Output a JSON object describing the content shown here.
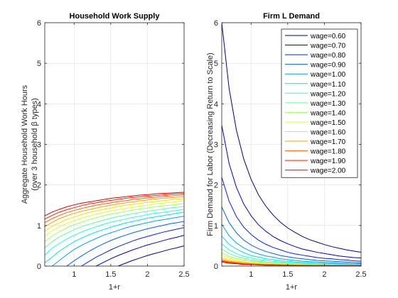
{
  "chart_data": [
    {
      "type": "line",
      "title": "Household Work Supply",
      "xlabel": "1+r",
      "ylabel_lines": [
        "Aggregate Household Work Hours",
        "(over 3 household β types)"
      ],
      "xlim": [
        0.6,
        2.5
      ],
      "ylim": [
        0,
        6
      ],
      "xticks": [
        1,
        1.5,
        2,
        2.5
      ],
      "xtick_labels": [
        "1",
        "1.5",
        "2",
        "2.5"
      ],
      "yticks": [
        0,
        1,
        2,
        3,
        4,
        5,
        6
      ],
      "ytick_labels": [
        "0",
        "1",
        "2",
        "3",
        "4",
        "5",
        "6"
      ],
      "grid": true,
      "x": [
        0.6,
        0.7,
        0.8,
        0.9,
        1.0,
        1.1,
        1.2,
        1.3,
        1.4,
        1.5,
        1.6,
        1.7,
        1.8,
        1.9,
        2.0,
        2.1,
        2.2,
        2.3,
        2.4,
        2.5
      ],
      "series": [
        {
          "name": "wage=0.60",
          "color": "#00008f",
          "values": [
            null,
            null,
            null,
            null,
            null,
            null,
            null,
            null,
            null,
            null,
            0.0,
            0.07,
            0.14,
            0.2,
            0.26,
            0.31,
            0.36,
            0.41,
            0.45,
            0.5
          ]
        },
        {
          "name": "wage=0.70",
          "color": "#0000cf",
          "values": [
            null,
            null,
            null,
            null,
            null,
            null,
            null,
            0.0,
            0.09,
            0.18,
            0.26,
            0.33,
            0.4,
            0.46,
            0.52,
            0.57,
            0.62,
            0.67,
            0.71,
            0.76
          ]
        },
        {
          "name": "wage=0.80",
          "color": "#0020ff",
          "values": [
            null,
            null,
            null,
            null,
            null,
            0.0,
            0.11,
            0.22,
            0.31,
            0.4,
            0.48,
            0.55,
            0.62,
            0.68,
            0.73,
            0.78,
            0.83,
            0.87,
            0.91,
            0.95
          ]
        },
        {
          "name": "wage=0.90",
          "color": "#0060ff",
          "values": [
            null,
            null,
            null,
            0.0,
            0.13,
            0.25,
            0.36,
            0.46,
            0.55,
            0.63,
            0.7,
            0.76,
            0.82,
            0.87,
            0.92,
            0.96,
            1.0,
            1.04,
            1.07,
            1.1
          ]
        },
        {
          "name": "wage=1.00",
          "color": "#00a0ff",
          "values": [
            null,
            0.0,
            0.14,
            0.28,
            0.41,
            0.51,
            0.6,
            0.68,
            0.76,
            0.82,
            0.88,
            0.94,
            0.99,
            1.03,
            1.07,
            1.11,
            1.14,
            1.17,
            1.2,
            1.23
          ]
        },
        {
          "name": "wage=1.10",
          "color": "#00dfff",
          "values": [
            0.08,
            0.22,
            0.37,
            0.49,
            0.6,
            0.69,
            0.77,
            0.84,
            0.9,
            0.96,
            1.01,
            1.06,
            1.1,
            1.14,
            1.18,
            1.21,
            1.24,
            1.27,
            1.3,
            1.33
          ]
        },
        {
          "name": "wage=1.20",
          "color": "#20ffdf",
          "values": [
            0.27,
            0.44,
            0.56,
            0.67,
            0.76,
            0.84,
            0.91,
            0.97,
            1.03,
            1.08,
            1.12,
            1.16,
            1.2,
            1.23,
            1.27,
            1.3,
            1.32,
            1.35,
            1.37,
            1.4
          ]
        },
        {
          "name": "wage=1.30",
          "color": "#60ff9f",
          "values": [
            0.45,
            0.6,
            0.72,
            0.81,
            0.9,
            0.97,
            1.03,
            1.08,
            1.13,
            1.18,
            1.22,
            1.26,
            1.29,
            1.32,
            1.35,
            1.38,
            1.4,
            1.43,
            1.45,
            1.47
          ]
        },
        {
          "name": "wage=1.40",
          "color": "#9fff60",
          "values": [
            0.6,
            0.74,
            0.85,
            0.94,
            1.02,
            1.08,
            1.14,
            1.19,
            1.24,
            1.28,
            1.31,
            1.35,
            1.38,
            1.41,
            1.43,
            1.46,
            1.48,
            1.5,
            1.52,
            1.54
          ]
        },
        {
          "name": "wage=1.50",
          "color": "#dfff20",
          "values": [
            0.74,
            0.87,
            0.97,
            1.05,
            1.12,
            1.18,
            1.23,
            1.28,
            1.32,
            1.36,
            1.39,
            1.42,
            1.45,
            1.48,
            1.5,
            1.53,
            1.55,
            1.57,
            1.59,
            1.61
          ]
        },
        {
          "name": "wage=1.60",
          "color": "#ffdf00",
          "values": [
            0.86,
            0.98,
            1.07,
            1.15,
            1.21,
            1.27,
            1.32,
            1.36,
            1.4,
            1.43,
            1.47,
            1.5,
            1.52,
            1.55,
            1.57,
            1.59,
            1.61,
            1.63,
            1.65,
            1.66
          ]
        },
        {
          "name": "wage=1.70",
          "color": "#ff9f00",
          "values": [
            0.97,
            1.08,
            1.17,
            1.24,
            1.3,
            1.35,
            1.39,
            1.43,
            1.47,
            1.5,
            1.53,
            1.56,
            1.58,
            1.61,
            1.63,
            1.65,
            1.67,
            1.68,
            1.7,
            1.71
          ]
        },
        {
          "name": "wage=1.80",
          "color": "#ff6000",
          "values": [
            1.07,
            1.17,
            1.25,
            1.32,
            1.37,
            1.42,
            1.46,
            1.5,
            1.53,
            1.56,
            1.59,
            1.61,
            1.64,
            1.66,
            1.68,
            1.7,
            1.71,
            1.73,
            1.74,
            1.76
          ]
        },
        {
          "name": "wage=1.90",
          "color": "#ff2000",
          "values": [
            1.16,
            1.25,
            1.33,
            1.39,
            1.44,
            1.49,
            1.53,
            1.56,
            1.59,
            1.62,
            1.64,
            1.67,
            1.69,
            1.71,
            1.72,
            1.74,
            1.75,
            1.77,
            1.78,
            1.79
          ]
        },
        {
          "name": "wage=2.00",
          "color": "#df0000",
          "values": [
            1.24,
            1.33,
            1.4,
            1.46,
            1.51,
            1.55,
            1.58,
            1.61,
            1.64,
            1.67,
            1.69,
            1.71,
            1.73,
            1.75,
            1.76,
            1.78,
            1.79,
            1.8,
            1.81,
            1.82
          ]
        }
      ]
    },
    {
      "type": "line",
      "title": "Firm L Demand",
      "xlabel": "1+r",
      "ylabel_lines": [
        "Firm Demand for Labor (Decreasing Return to Scale)"
      ],
      "xlim": [
        0.6,
        2.5
      ],
      "ylim": [
        0,
        6
      ],
      "xticks": [
        1,
        1.5,
        2,
        2.5
      ],
      "xtick_labels": [
        "1",
        "1.5",
        "2",
        "2.5"
      ],
      "yticks": [
        0,
        1,
        2,
        3,
        4,
        5,
        6
      ],
      "ytick_labels": [
        "0",
        "1",
        "2",
        "3",
        "4",
        "5",
        "6"
      ],
      "grid": true,
      "legend_position": "top-right",
      "x": [
        0.6,
        0.7,
        0.8,
        0.9,
        1.0,
        1.1,
        1.2,
        1.3,
        1.4,
        1.5,
        1.6,
        1.7,
        1.8,
        1.9,
        2.0,
        2.1,
        2.2,
        2.3,
        2.4,
        2.5
      ],
      "series": [
        {
          "name": "wage=0.60",
          "color": "#00008f",
          "values": [
            6.0,
            4.38,
            3.35,
            2.64,
            2.14,
            1.76,
            1.48,
            1.26,
            1.08,
            0.94,
            0.83,
            0.73,
            0.65,
            0.59,
            0.53,
            0.48,
            0.44,
            0.4,
            0.37,
            0.34
          ]
        },
        {
          "name": "wage=0.70",
          "color": "#0000cf",
          "values": [
            3.47,
            2.53,
            1.94,
            1.53,
            1.24,
            1.02,
            0.86,
            0.73,
            0.63,
            0.55,
            0.48,
            0.42,
            0.38,
            0.34,
            0.31,
            0.28,
            0.25,
            0.23,
            0.21,
            0.2
          ]
        },
        {
          "name": "wage=0.80",
          "color": "#0020ff",
          "values": [
            2.19,
            1.6,
            1.22,
            0.96,
            0.78,
            0.64,
            0.54,
            0.46,
            0.4,
            0.34,
            0.3,
            0.27,
            0.24,
            0.21,
            0.19,
            0.18,
            0.16,
            0.15,
            0.13,
            0.12
          ]
        },
        {
          "name": "wage=0.90",
          "color": "#0060ff",
          "values": [
            1.46,
            1.07,
            0.82,
            0.64,
            0.52,
            0.43,
            0.36,
            0.31,
            0.26,
            0.23,
            0.2,
            0.18,
            0.16,
            0.14,
            0.13,
            0.12,
            0.11,
            0.1,
            0.09,
            0.08
          ]
        },
        {
          "name": "wage=1.00",
          "color": "#00a0ff",
          "values": [
            1.03,
            0.75,
            0.57,
            0.45,
            0.36,
            0.3,
            0.25,
            0.22,
            0.18,
            0.16,
            0.14,
            0.12,
            0.11,
            0.1,
            0.09,
            0.08,
            0.07,
            0.07,
            0.06,
            0.06
          ]
        },
        {
          "name": "wage=1.10",
          "color": "#00dfff",
          "values": [
            0.74,
            0.54,
            0.42,
            0.33,
            0.26,
            0.22,
            0.18,
            0.16,
            0.13,
            0.12,
            0.1,
            0.09,
            0.08,
            0.07,
            0.07,
            0.06,
            0.05,
            0.05,
            0.05,
            0.04
          ]
        },
        {
          "name": "wage=1.20",
          "color": "#20ffdf",
          "values": [
            0.55,
            0.4,
            0.31,
            0.24,
            0.2,
            0.16,
            0.14,
            0.12,
            0.1,
            0.09,
            0.08,
            0.07,
            0.06,
            0.05,
            0.05,
            0.04,
            0.04,
            0.04,
            0.03,
            0.03
          ]
        },
        {
          "name": "wage=1.30",
          "color": "#60ff9f",
          "values": [
            0.42,
            0.31,
            0.24,
            0.19,
            0.15,
            0.12,
            0.1,
            0.09,
            0.08,
            0.07,
            0.06,
            0.05,
            0.05,
            0.04,
            0.04,
            0.03,
            0.03,
            0.03,
            0.03,
            0.02
          ]
        },
        {
          "name": "wage=1.40",
          "color": "#9fff60",
          "values": [
            0.33,
            0.24,
            0.18,
            0.15,
            0.12,
            0.1,
            0.08,
            0.07,
            0.06,
            0.05,
            0.05,
            0.04,
            0.04,
            0.03,
            0.03,
            0.03,
            0.02,
            0.02,
            0.02,
            0.02
          ]
        },
        {
          "name": "wage=1.50",
          "color": "#dfff20",
          "values": [
            0.26,
            0.19,
            0.15,
            0.11,
            0.09,
            0.08,
            0.06,
            0.05,
            0.05,
            0.04,
            0.04,
            0.03,
            0.03,
            0.03,
            0.02,
            0.02,
            0.02,
            0.02,
            0.02,
            0.01
          ]
        },
        {
          "name": "wage=1.60",
          "color": "#ffdf00",
          "values": [
            0.21,
            0.15,
            0.12,
            0.09,
            0.07,
            0.06,
            0.05,
            0.04,
            0.04,
            0.03,
            0.03,
            0.03,
            0.02,
            0.02,
            0.02,
            0.02,
            0.02,
            0.01,
            0.01,
            0.01
          ]
        },
        {
          "name": "wage=1.70",
          "color": "#ff9f00",
          "values": [
            0.17,
            0.12,
            0.1,
            0.08,
            0.06,
            0.05,
            0.04,
            0.04,
            0.03,
            0.03,
            0.02,
            0.02,
            0.02,
            0.02,
            0.02,
            0.01,
            0.01,
            0.01,
            0.01,
            0.01
          ]
        },
        {
          "name": "wage=1.80",
          "color": "#ff6000",
          "values": [
            0.14,
            0.1,
            0.08,
            0.06,
            0.05,
            0.04,
            0.03,
            0.03,
            0.03,
            0.02,
            0.02,
            0.02,
            0.02,
            0.01,
            0.01,
            0.01,
            0.01,
            0.01,
            0.01,
            0.01
          ]
        },
        {
          "name": "wage=1.90",
          "color": "#ff2000",
          "values": [
            0.12,
            0.09,
            0.07,
            0.05,
            0.04,
            0.03,
            0.03,
            0.03,
            0.02,
            0.02,
            0.02,
            0.01,
            0.01,
            0.01,
            0.01,
            0.01,
            0.01,
            0.01,
            0.01,
            0.01
          ]
        },
        {
          "name": "wage=2.00",
          "color": "#df0000",
          "values": [
            0.1,
            0.07,
            0.06,
            0.04,
            0.04,
            0.03,
            0.02,
            0.02,
            0.02,
            0.02,
            0.01,
            0.01,
            0.01,
            0.01,
            0.01,
            0.01,
            0.01,
            0.01,
            0.01,
            0.01
          ]
        }
      ]
    }
  ],
  "colors": {
    "background": "#ffffff",
    "axis": "#262626",
    "grid": "#dfdfdf",
    "text": "#262626"
  }
}
